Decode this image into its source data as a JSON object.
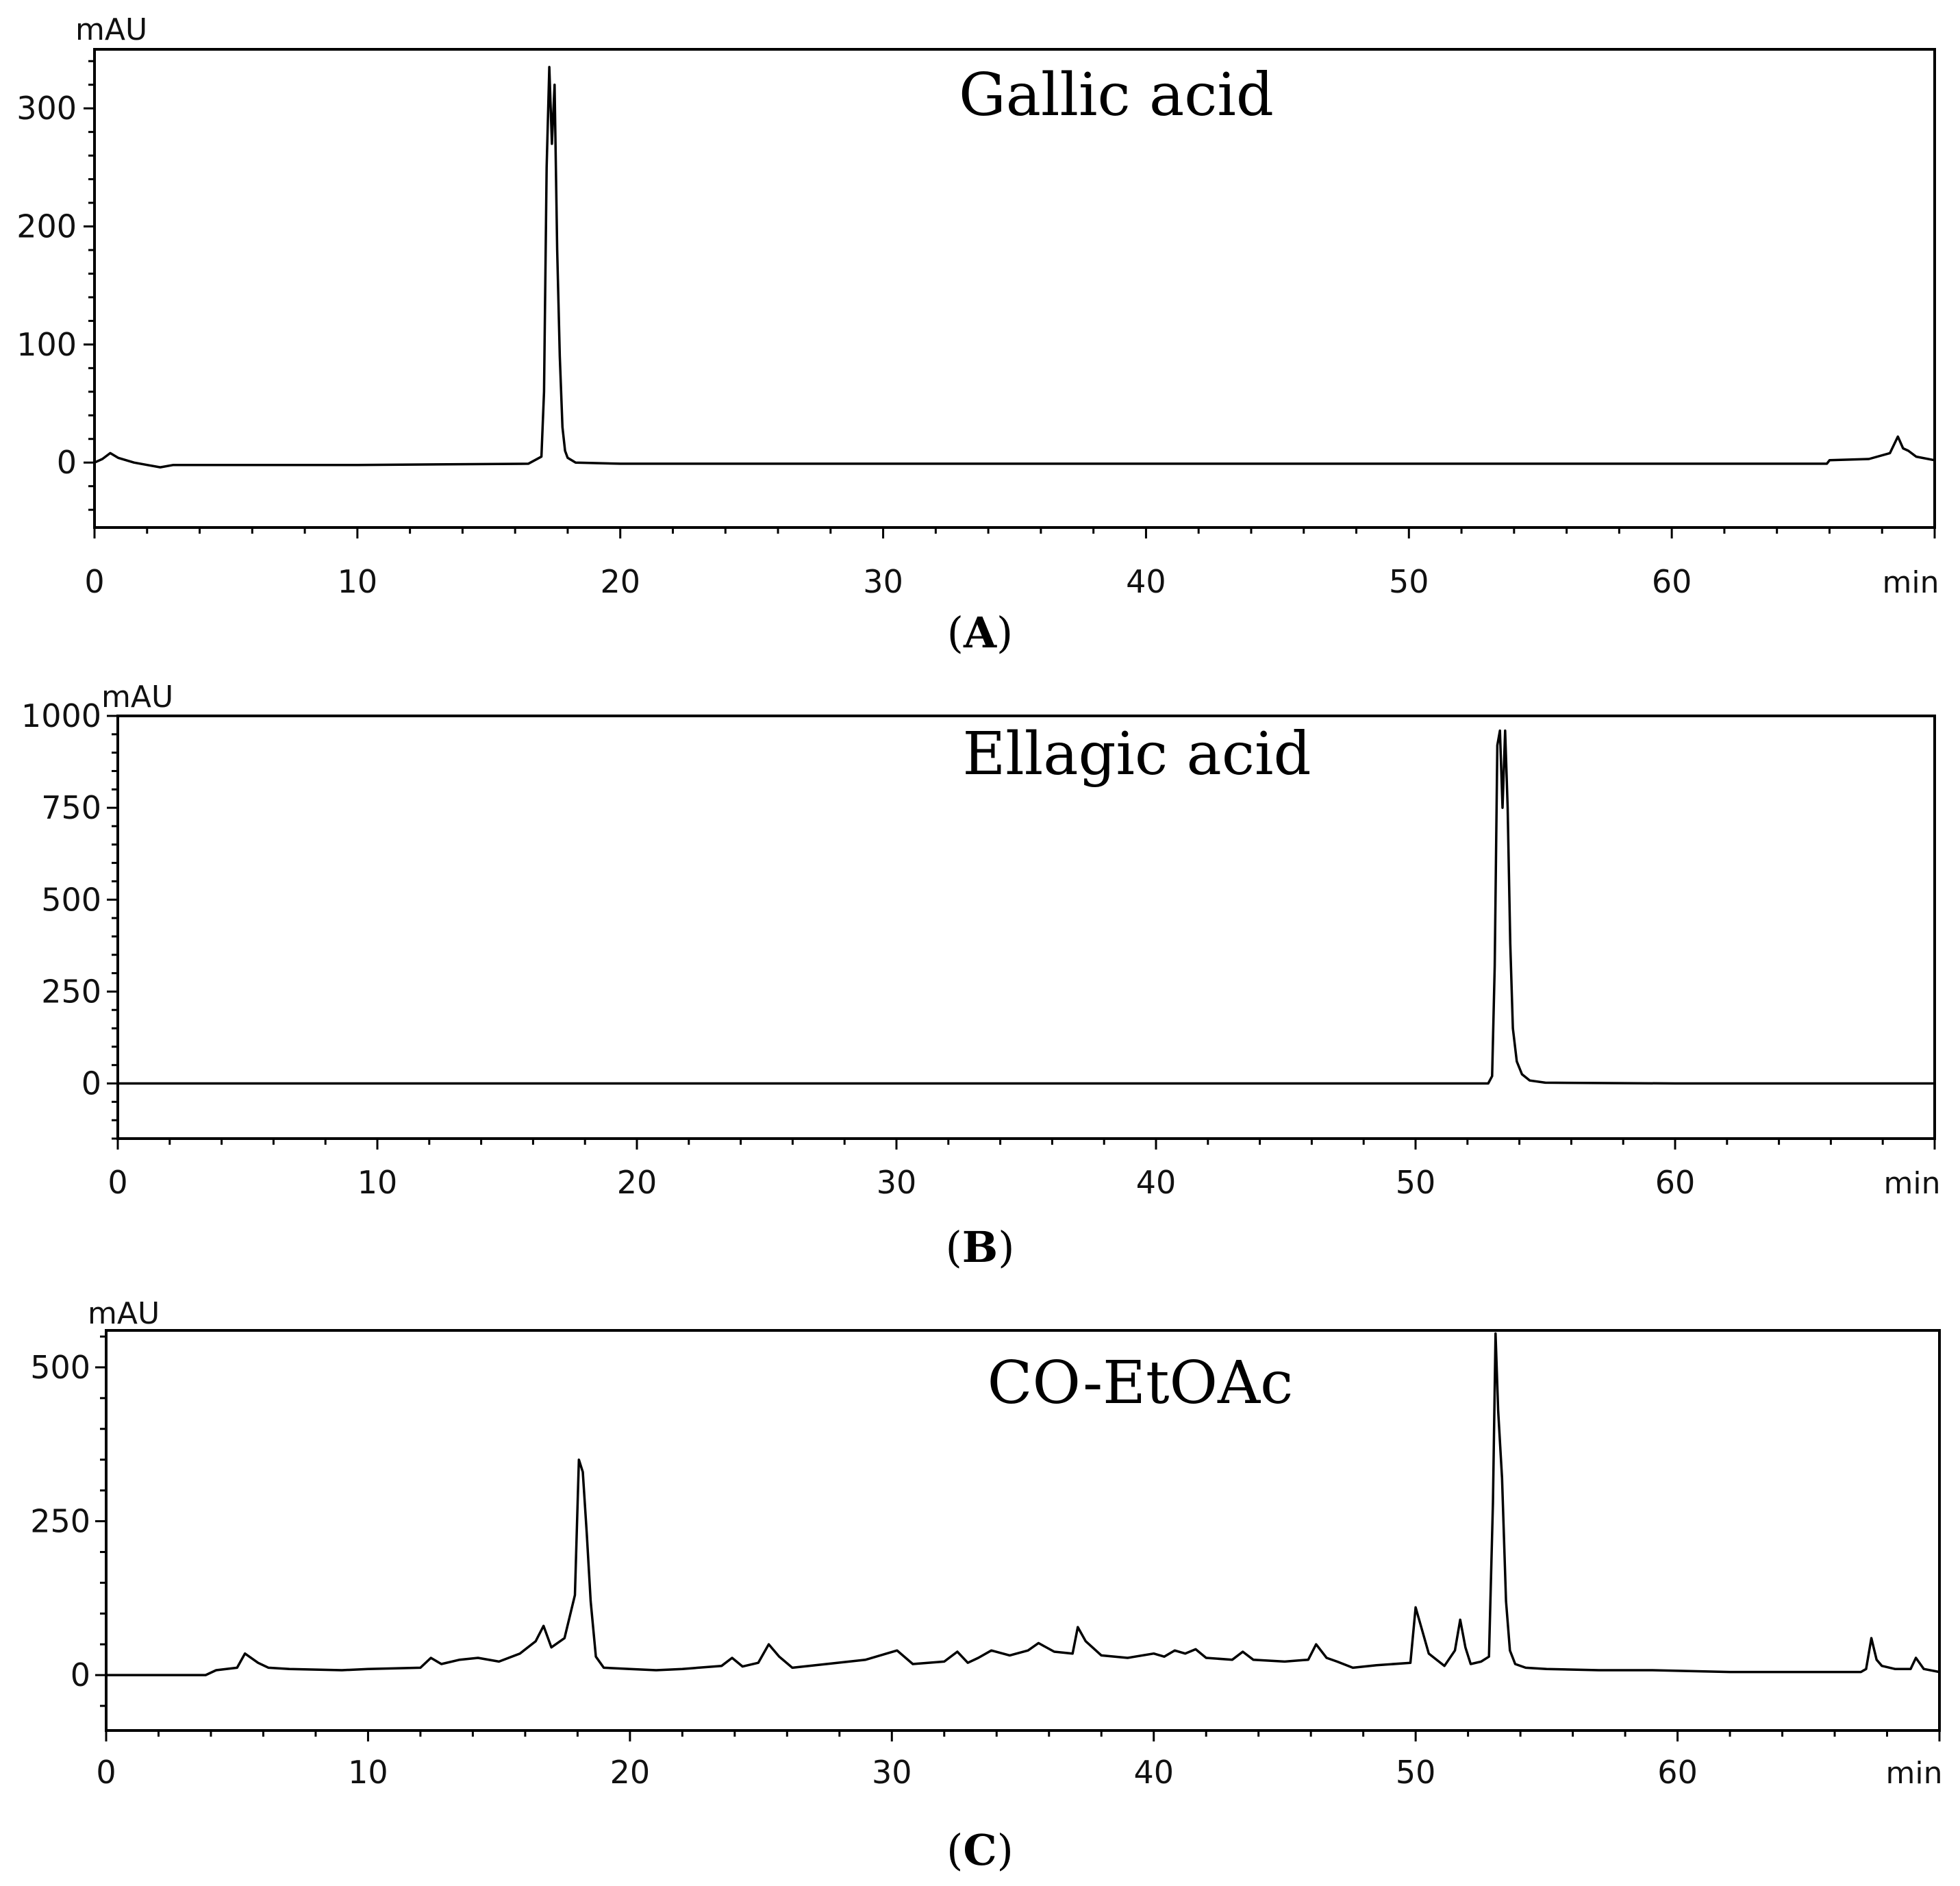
{
  "chart_data": [
    {
      "type": "line",
      "title": "Gallic acid",
      "ylabel": "mAU",
      "xlabel": "min",
      "panel_label": "A",
      "xlim": [
        0,
        70
      ],
      "ylim": [
        -55,
        350
      ],
      "x_ticks": [
        0,
        10,
        20,
        30,
        40,
        50,
        60
      ],
      "y_ticks": [
        0,
        100,
        200,
        300
      ],
      "grid": false,
      "legend": "none",
      "series": [
        {
          "x": [
            0,
            0.3,
            0.6,
            0.9,
            1.5,
            2.0,
            2.5,
            3.0,
            10,
            16.5,
            17.0,
            17.1,
            17.2,
            17.3,
            17.4,
            17.5,
            17.6,
            17.7,
            17.8,
            17.9,
            18.0,
            18.3,
            20,
            40,
            65.9,
            66.0,
            67.5,
            68.3,
            68.6,
            68.8,
            69.0,
            69.3,
            70
          ],
          "y": [
            0,
            3,
            8,
            4,
            0,
            -2,
            -4,
            -2,
            -2,
            -1,
            5,
            60,
            250,
            335,
            270,
            320,
            180,
            90,
            30,
            10,
            4,
            0,
            -1,
            -1,
            -1,
            2,
            3,
            8,
            22,
            12,
            10,
            5,
            2
          ]
        }
      ]
    },
    {
      "type": "line",
      "title": "Ellagic acid",
      "ylabel": "mAU",
      "xlabel": "min",
      "panel_label": "B",
      "xlim": [
        0,
        70
      ],
      "ylim": [
        -150,
        1000
      ],
      "x_ticks": [
        0,
        10,
        20,
        30,
        40,
        50,
        60
      ],
      "y_ticks": [
        0,
        250,
        500,
        750,
        1000
      ],
      "grid": false,
      "legend": "none",
      "series": [
        {
          "x": [
            0,
            40,
            52.8,
            52.95,
            53.05,
            53.15,
            53.25,
            53.35,
            53.45,
            53.55,
            53.65,
            53.75,
            53.9,
            54.1,
            54.4,
            55.0,
            60,
            70
          ],
          "y": [
            0,
            0,
            0,
            20,
            320,
            920,
            960,
            750,
            960,
            750,
            380,
            150,
            60,
            25,
            8,
            2,
            0,
            0
          ]
        }
      ]
    },
    {
      "type": "line",
      "title": "CO-EtOAc",
      "ylabel": "mAU",
      "xlabel": "min",
      "panel_label": "C",
      "xlim": [
        0,
        70
      ],
      "ylim": [
        -90,
        560
      ],
      "x_ticks": [
        0,
        10,
        20,
        30,
        40,
        50,
        60
      ],
      "y_ticks": [
        0,
        250,
        500
      ],
      "grid": false,
      "legend": "none",
      "series": [
        {
          "x": [
            0,
            3.8,
            4.2,
            5.0,
            5.3,
            5.8,
            6.2,
            7,
            9,
            10,
            12,
            12.4,
            12.8,
            13.5,
            14.2,
            15,
            15.8,
            16.4,
            16.7,
            17.0,
            17.5,
            17.9,
            18.05,
            18.2,
            18.35,
            18.5,
            18.7,
            19.0,
            20,
            21,
            22,
            23.5,
            23.9,
            24.3,
            24.9,
            25.3,
            25.7,
            26.2,
            27.5,
            29,
            29.8,
            30.2,
            30.8,
            32,
            32.5,
            32.9,
            33.3,
            33.8,
            34.5,
            35.2,
            35.6,
            36.2,
            36.9,
            37.1,
            37.4,
            38,
            39,
            40,
            40.4,
            40.8,
            41.2,
            41.6,
            42,
            43,
            43.4,
            43.8,
            45,
            45.9,
            46.2,
            46.6,
            47,
            47.6,
            48.5,
            49.8,
            50.0,
            50.2,
            50.5,
            50.8,
            51.1,
            51.5,
            51.7,
            51.9,
            52.1,
            52.5,
            52.8,
            52.95,
            53.05,
            53.15,
            53.3,
            53.45,
            53.6,
            53.8,
            54.2,
            55,
            57,
            59,
            62,
            65,
            67.0,
            67.2,
            67.4,
            67.6,
            67.8,
            68.3,
            68.9,
            69.1,
            69.4,
            70
          ],
          "y": [
            0,
            0,
            8,
            12,
            35,
            20,
            12,
            10,
            8,
            10,
            12,
            28,
            18,
            25,
            28,
            22,
            35,
            55,
            80,
            45,
            60,
            130,
            350,
            330,
            230,
            120,
            30,
            12,
            10,
            8,
            10,
            15,
            28,
            14,
            20,
            50,
            30,
            12,
            18,
            25,
            35,
            40,
            18,
            22,
            38,
            20,
            28,
            40,
            32,
            40,
            52,
            38,
            35,
            78,
            55,
            32,
            28,
            35,
            30,
            40,
            35,
            42,
            28,
            25,
            38,
            25,
            22,
            25,
            50,
            28,
            22,
            12,
            16,
            20,
            110,
            80,
            35,
            25,
            15,
            40,
            90,
            45,
            18,
            22,
            30,
            280,
            555,
            430,
            320,
            120,
            40,
            18,
            12,
            10,
            8,
            8,
            5,
            5,
            5,
            10,
            60,
            25,
            15,
            10,
            10,
            28,
            10,
            5
          ]
        }
      ]
    }
  ]
}
